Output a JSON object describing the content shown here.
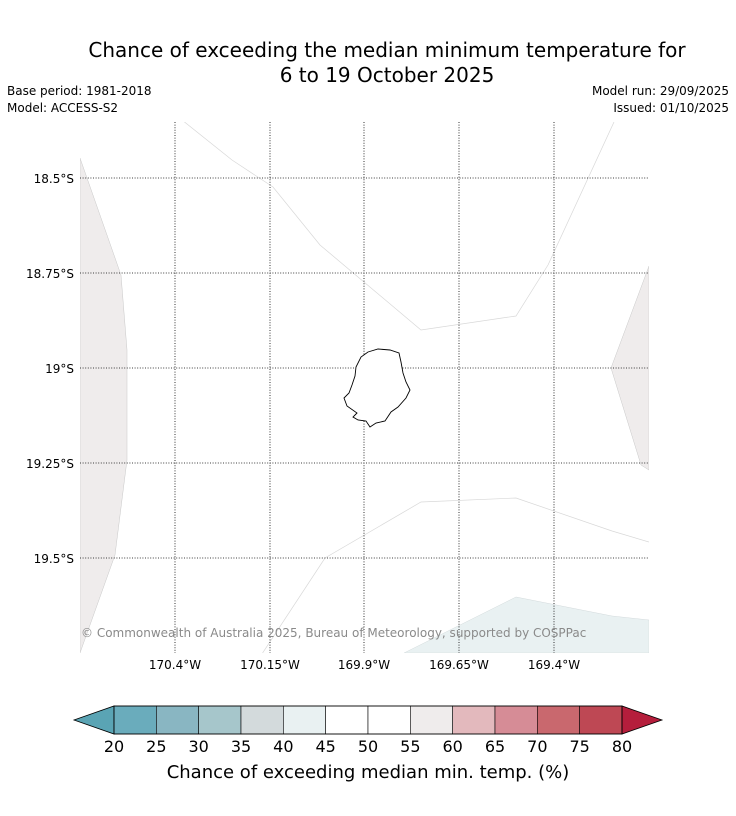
{
  "title": {
    "line1": "Chance of exceeding the median minimum temperature for",
    "line2": "6 to 19 October 2025"
  },
  "meta": {
    "base_period": "Base period: 1981-2018",
    "model": "Model: ACCESS-S2",
    "model_run": "Model run: 29/09/2025",
    "issued": "Issued: 01/10/2025"
  },
  "map": {
    "latitude_labels": [
      "18.5°S",
      "18.75°S",
      "19°S",
      "19.25°S",
      "19.5°S"
    ],
    "longitude_labels": [
      "170.4°W",
      "170.15°W",
      "169.9°W",
      "169.65°W",
      "169.4°W"
    ],
    "copyright": "© Commonwealth of Australia 2025, Bureau of Meteorology, supported by COSPPac",
    "island": "Niue"
  },
  "colorbar": {
    "label": "Chance of exceeding median min. temp. (%)",
    "ticks": [
      "20",
      "25",
      "30",
      "35",
      "40",
      "45",
      "50",
      "55",
      "60",
      "65",
      "70",
      "75",
      "80"
    ],
    "colors": {
      "under": "#5aa4b4",
      "bins": [
        "#6aacbc",
        "#89b6c2",
        "#a6c6cb",
        "#d3dadc",
        "#e9f1f2",
        "#ffffff",
        "#ffffff",
        "#efecec",
        "#e3b9bd",
        "#d68c96",
        "#c9686e",
        "#be4854"
      ],
      "over": "#b51e3c"
    }
  }
}
